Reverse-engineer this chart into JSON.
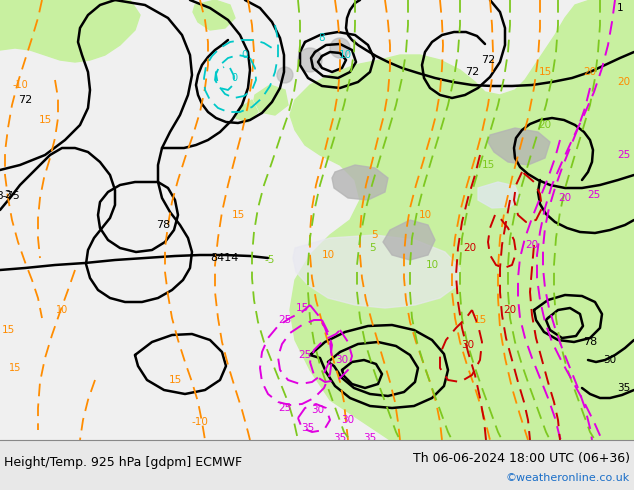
{
  "title_left": "Height/Temp. 925 hPa [gdpm] ECMWF",
  "title_right": "Th 06-06-2024 18:00 UTC (06+36)",
  "credit": "©weatheronline.co.uk",
  "contour_black": "#000000",
  "contour_orange": "#ff8c00",
  "contour_green": "#7dc820",
  "contour_teal": "#00c8c8",
  "contour_magenta": "#e000e0",
  "contour_red": "#cc0000",
  "font_size_title": 9,
  "font_size_credit": 8,
  "bg_ocean": "#f0f0f0",
  "bg_land_green": "#c8f0a0",
  "bg_land_gray": "#b4b4b4",
  "bottom_bar": "#e8e8e8"
}
